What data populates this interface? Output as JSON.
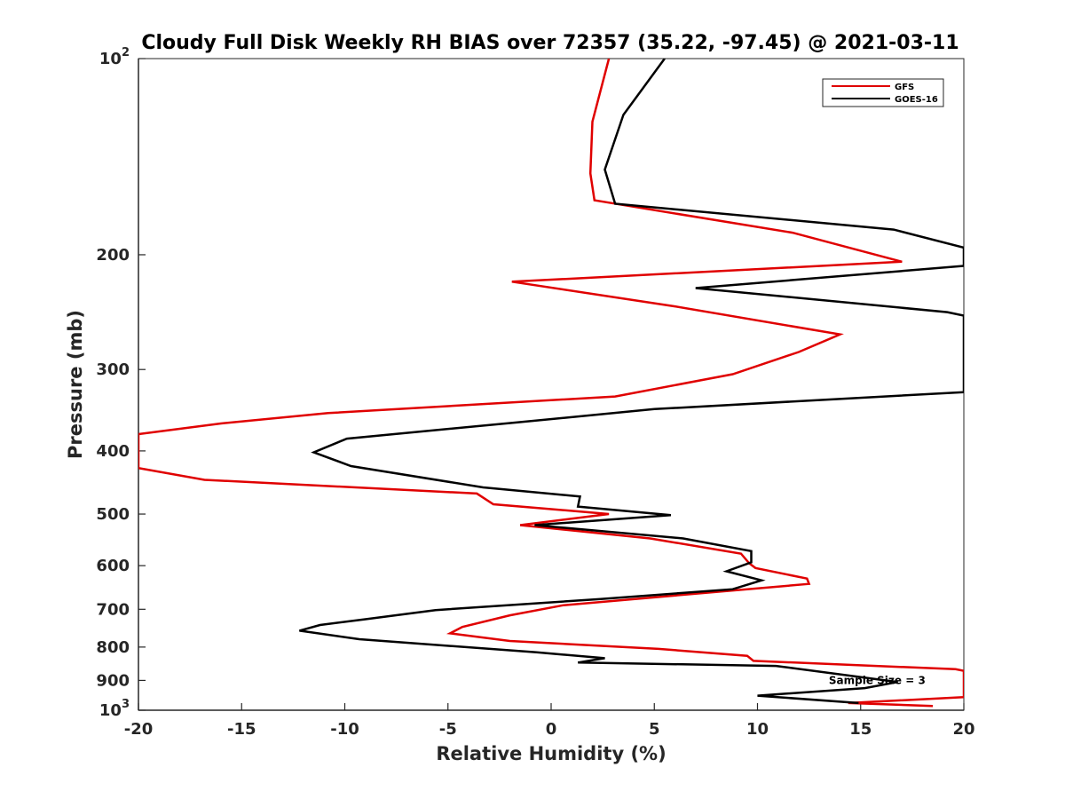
{
  "chart_data": {
    "type": "line",
    "title": "Cloudy Full Disk Weekly RH BIAS over 72357 (35.22, -97.45) @ 2021-03-11",
    "xlabel": "Relative Humidity (%)",
    "ylabel": "Pressure (mb)",
    "xlim": [
      -20,
      20
    ],
    "ylim": [
      100,
      1000
    ],
    "y_scale": "log",
    "y_reversed": true,
    "x_ticks": [
      "-20",
      "-15",
      "-10",
      "-5",
      "0",
      "5",
      "10",
      "15",
      "20"
    ],
    "y_ticks": [
      {
        "value": 100,
        "label": "10",
        "sup": "2"
      },
      {
        "value": 200,
        "label": "200",
        "sup": ""
      },
      {
        "value": 300,
        "label": "300",
        "sup": ""
      },
      {
        "value": 400,
        "label": "400",
        "sup": ""
      },
      {
        "value": 500,
        "label": "500",
        "sup": ""
      },
      {
        "value": 600,
        "label": "600",
        "sup": ""
      },
      {
        "value": 700,
        "label": "700",
        "sup": ""
      },
      {
        "value": 800,
        "label": "800",
        "sup": ""
      },
      {
        "value": 900,
        "label": "900",
        "sup": ""
      },
      {
        "value": 1000,
        "label": "10",
        "sup": "3"
      }
    ],
    "grid": false,
    "legend_position": "top-right",
    "annotation": {
      "text": "Sample Size = 3",
      "x": 15.8,
      "p": 900
    },
    "series": [
      {
        "name": "GFS",
        "color": "#e00000",
        "points": [
          [
            2.8,
            100
          ],
          [
            2.0,
            125
          ],
          [
            1.9,
            150
          ],
          [
            2.1,
            165
          ],
          [
            11.7,
            185
          ],
          [
            17.0,
            205
          ],
          [
            -1.9,
            220
          ],
          [
            6.0,
            240
          ],
          [
            14.0,
            265
          ],
          [
            12.0,
            282
          ],
          [
            8.8,
            305
          ],
          [
            3.1,
            330
          ],
          [
            -10.8,
            350
          ],
          [
            -16.0,
            363
          ],
          [
            -20.0,
            377
          ],
          [
            -20.0,
            425
          ],
          [
            -16.8,
            443
          ],
          [
            -3.6,
            465
          ],
          [
            -2.8,
            483
          ],
          [
            2.8,
            500
          ],
          [
            -1.5,
            520
          ],
          [
            4.8,
            545
          ],
          [
            9.2,
            575
          ],
          [
            9.6,
            595
          ],
          [
            9.9,
            605
          ],
          [
            12.4,
            628
          ],
          [
            12.5,
            640
          ],
          [
            0.6,
            690
          ],
          [
            -2.0,
            715
          ],
          [
            -4.3,
            745
          ],
          [
            -4.9,
            762
          ],
          [
            -2.0,
            783
          ],
          [
            5.2,
            805
          ],
          [
            9.5,
            825
          ],
          [
            9.8,
            840
          ],
          [
            19.6,
            865
          ],
          [
            20.0,
            870
          ],
          [
            20.0,
            955
          ],
          [
            14.4,
            975
          ],
          [
            18.5,
            985
          ]
        ]
      },
      {
        "name": "GOES-16",
        "color": "#000000",
        "points": [
          [
            5.5,
            100
          ],
          [
            3.5,
            122
          ],
          [
            2.6,
            148
          ],
          [
            3.1,
            167
          ],
          [
            16.6,
            183
          ],
          [
            20.0,
            195
          ],
          [
            20.0,
            208
          ],
          [
            7.0,
            225
          ],
          [
            19.2,
            245
          ],
          [
            20.0,
            248
          ],
          [
            20.0,
            325
          ],
          [
            5.0,
            345
          ],
          [
            -1.8,
            362
          ],
          [
            -9.9,
            383
          ],
          [
            -11.5,
            402
          ],
          [
            -9.7,
            422
          ],
          [
            -3.3,
            455
          ],
          [
            1.4,
            470
          ],
          [
            1.3,
            487
          ],
          [
            5.8,
            502
          ],
          [
            -0.8,
            520
          ],
          [
            6.4,
            545
          ],
          [
            9.7,
            570
          ],
          [
            9.7,
            593
          ],
          [
            8.5,
            612
          ],
          [
            10.2,
            632
          ],
          [
            8.8,
            652
          ],
          [
            2.4,
            675
          ],
          [
            -5.6,
            702
          ],
          [
            -9.0,
            725
          ],
          [
            -11.2,
            740
          ],
          [
            -12.2,
            755
          ],
          [
            -9.3,
            778
          ],
          [
            -0.7,
            815
          ],
          [
            2.6,
            832
          ],
          [
            1.3,
            845
          ],
          [
            10.9,
            855
          ],
          [
            16.8,
            905
          ],
          [
            15.2,
            925
          ],
          [
            10.0,
            950
          ],
          [
            14.9,
            975
          ]
        ]
      }
    ]
  }
}
